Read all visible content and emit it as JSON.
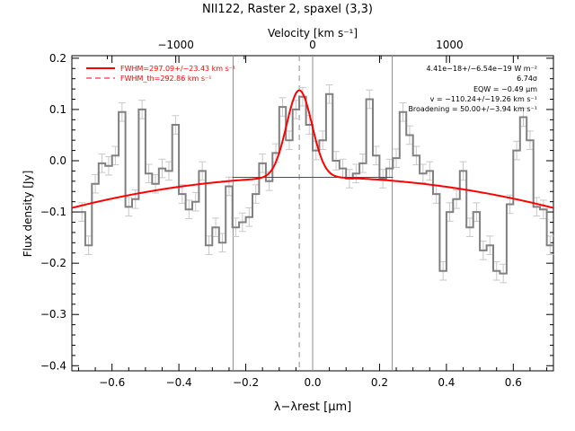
{
  "chart_data": {
    "type": "line",
    "title": "NII122, Raster 2, spaxel (3,3)",
    "xlabel": "λ−λrest [μm]",
    "ylabel": "Flux density [Jy]",
    "top_axis_label": "Velocity [km s⁻¹]",
    "xlim": [
      -0.72,
      0.72
    ],
    "ylim": [
      -0.41,
      0.205
    ],
    "x_ticks": [
      -0.6,
      -0.4,
      -0.2,
      0.0,
      0.2,
      0.4,
      0.6
    ],
    "x_tick_labels": [
      "−0.6",
      "−0.4",
      "−0.2",
      "0.0",
      "0.2",
      "0.4",
      "0.6"
    ],
    "y_ticks": [
      -0.4,
      -0.3,
      -0.2,
      -0.1,
      0.0,
      0.1,
      0.2
    ],
    "y_tick_labels": [
      "−0.4",
      "−0.3",
      "−0.2",
      "−0.1",
      "0.0",
      "0.1",
      "0.2"
    ],
    "top_ticks_velocity": [
      -1000,
      0,
      1000
    ],
    "top_tick_labels": [
      "−1000",
      "0",
      "1000"
    ],
    "grid": false,
    "vertical_lines": [
      -0.238,
      0.0,
      0.238
    ],
    "dashed_line_x": -0.04,
    "legend_position": "top-left",
    "legend": [
      {
        "label": "FWHM=297.09+/−23.43 km s⁻¹",
        "style": "solid",
        "color": "#ff0000"
      },
      {
        "label": "FWHM_th=292.86 km s⁻¹",
        "style": "dashed",
        "color": "#ff0000"
      }
    ],
    "annotations": [
      "4.41e−18+/−6.54e−19 W m⁻²",
      "6.74σ",
      "EQW = −0.49 μm",
      "v = −110.24+/−19.26 km s⁻¹",
      "Broadening = 50.00+/−3.94 km s⁻¹"
    ],
    "series": [
      {
        "name": "Spectrum",
        "style": "step",
        "color": "#808080",
        "x": [
          -0.69,
          -0.67,
          -0.65,
          -0.63,
          -0.61,
          -0.59,
          -0.57,
          -0.55,
          -0.53,
          -0.51,
          -0.49,
          -0.47,
          -0.45,
          -0.43,
          -0.41,
          -0.39,
          -0.37,
          -0.35,
          -0.33,
          -0.31,
          -0.29,
          -0.27,
          -0.25,
          -0.23,
          -0.21,
          -0.19,
          -0.17,
          -0.15,
          -0.13,
          -0.11,
          -0.09,
          -0.07,
          -0.05,
          -0.03,
          -0.01,
          0.01,
          0.03,
          0.05,
          0.07,
          0.09,
          0.11,
          0.13,
          0.15,
          0.17,
          0.19,
          0.21,
          0.23,
          0.25,
          0.27,
          0.29,
          0.31,
          0.33,
          0.35,
          0.37,
          0.39,
          0.41,
          0.43,
          0.45,
          0.47,
          0.49,
          0.51,
          0.53,
          0.55,
          0.57,
          0.59,
          0.61,
          0.63,
          0.65,
          0.67,
          0.69,
          0.71
        ],
        "y": [
          -0.1,
          -0.165,
          -0.045,
          -0.005,
          -0.01,
          0.01,
          0.095,
          -0.09,
          -0.075,
          0.1,
          -0.025,
          -0.045,
          -0.015,
          -0.02,
          0.07,
          -0.065,
          -0.095,
          -0.08,
          -0.02,
          -0.165,
          -0.13,
          -0.16,
          -0.05,
          -0.13,
          -0.12,
          -0.11,
          -0.065,
          -0.005,
          -0.04,
          0.015,
          0.105,
          0.04,
          0.1,
          0.125,
          0.07,
          0.02,
          0.04,
          0.13,
          0.0,
          -0.015,
          -0.035,
          -0.025,
          -0.005,
          0.12,
          0.01,
          -0.035,
          -0.015,
          0.005,
          0.095,
          0.05,
          0.01,
          -0.025,
          -0.02,
          -0.065,
          -0.215,
          -0.1,
          -0.075,
          -0.02,
          -0.13,
          -0.1,
          -0.175,
          -0.165,
          -0.215,
          -0.22,
          -0.085,
          0.02,
          0.085,
          0.04,
          -0.09,
          -0.095,
          -0.165
        ]
      },
      {
        "name": "Fit",
        "style": "line",
        "color": "#ff0000",
        "baseline_curve": {
          "a": -0.0325,
          "b": 0.0,
          "c": -0.115
        },
        "gaussian": {
          "center": -0.04,
          "peak": 0.17,
          "sigma": 0.038
        }
      }
    ]
  }
}
